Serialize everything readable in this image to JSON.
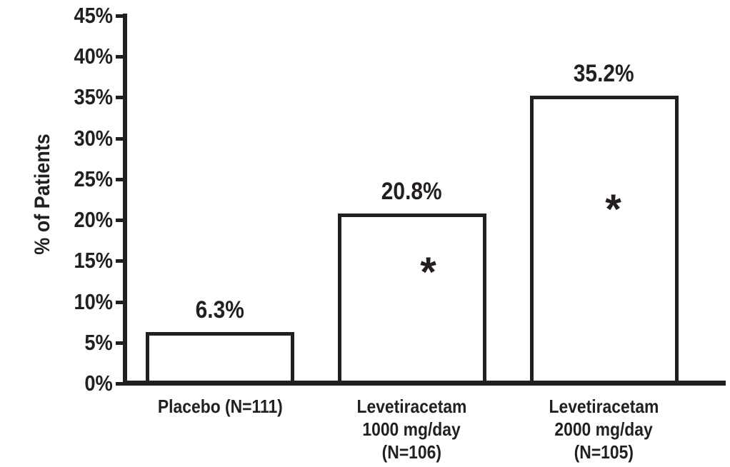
{
  "chart_data": {
    "type": "bar",
    "title": "",
    "xlabel": "",
    "ylabel": "% of Patients",
    "ylim": [
      0,
      45
    ],
    "ytick_step": 5,
    "ytick_labels": [
      "0%",
      "5%",
      "10%",
      "15%",
      "20%",
      "25%",
      "30%",
      "35%",
      "40%",
      "45%"
    ],
    "grid": false,
    "legend_position": "none",
    "bar_style": {
      "fill": "#ffffff",
      "border": "#231f20"
    },
    "categories": [
      "Placebo (N=111)",
      "Levetiracetam 1000 mg/day (N=106)",
      "Levetiracetam 2000 mg/day (N=105)"
    ],
    "category_label_lines": [
      [
        "Placebo (N=111)"
      ],
      [
        "Levetiracetam",
        "1000 mg/day",
        "(N=106)"
      ],
      [
        "Levetiracetam",
        "2000 mg/day",
        "(N=105)"
      ]
    ],
    "values": [
      6.3,
      20.8,
      35.2
    ],
    "value_labels": [
      "6.3%",
      "20.8%",
      "35.2%"
    ],
    "significant": [
      false,
      true,
      true
    ],
    "significance_marker": "*"
  },
  "colors": {
    "ink": "#231f20",
    "background": "#ffffff"
  }
}
